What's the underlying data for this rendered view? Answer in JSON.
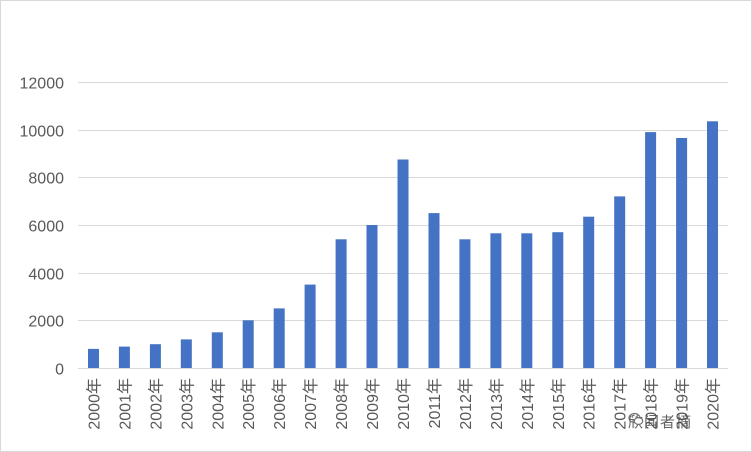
{
  "chart_data": {
    "type": "bar",
    "title": "",
    "xlabel": "",
    "ylabel": "",
    "categories": [
      "2000年",
      "2001年",
      "2002年",
      "2003年",
      "2004年",
      "2005年",
      "2006年",
      "2007年",
      "2008年",
      "2009年",
      "2010年",
      "2011年",
      "2012年",
      "2013年",
      "2014年",
      "2015年",
      "2016年",
      "2017年",
      "2018年",
      "2019年",
      "2020年"
    ],
    "values": [
      800,
      900,
      1000,
      1200,
      1500,
      2000,
      2500,
      3500,
      5400,
      6000,
      8750,
      6500,
      5400,
      5650,
      5650,
      5700,
      6350,
      7200,
      9900,
      9650,
      10350
    ],
    "ylim": [
      0,
      12000
    ],
    "yticks": [
      0,
      2000,
      4000,
      6000,
      8000,
      10000,
      12000
    ],
    "grid": true,
    "bar_color": "#4472c4",
    "grid_color": "#d9d9d9"
  },
  "watermark": {
    "icon": "wechat-icon",
    "text": "欣闻者摘"
  }
}
